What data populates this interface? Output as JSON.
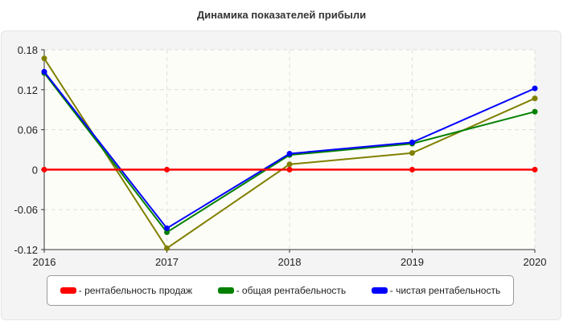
{
  "chart_data": {
    "type": "line",
    "title": "Динамика показателей прибыли",
    "x": [
      "2016",
      "2017",
      "2018",
      "2019",
      "2020"
    ],
    "ylim": [
      -0.12,
      0.18
    ],
    "yticks": [
      "-0.12",
      "-0.06",
      "0",
      "0.06",
      "0.12",
      "0.18"
    ],
    "grid": true,
    "legend_position": "bottom",
    "series": [
      {
        "name": "- рентабельность продаж",
        "color": "#ff0000",
        "values": [
          0,
          0,
          0,
          0,
          0
        ]
      },
      {
        "name": "- общая рентабельность",
        "color": "#008000",
        "values": [
          0.145,
          -0.094,
          0.022,
          0.039,
          0.087
        ]
      },
      {
        "name": "- чистая рентабельность",
        "color": "#0000ff",
        "values": [
          0.147,
          -0.088,
          0.024,
          0.041,
          0.122
        ]
      },
      {
        "color": "#808000",
        "values": [
          0.167,
          -0.118,
          0.008,
          0.025,
          0.107
        ]
      }
    ]
  }
}
